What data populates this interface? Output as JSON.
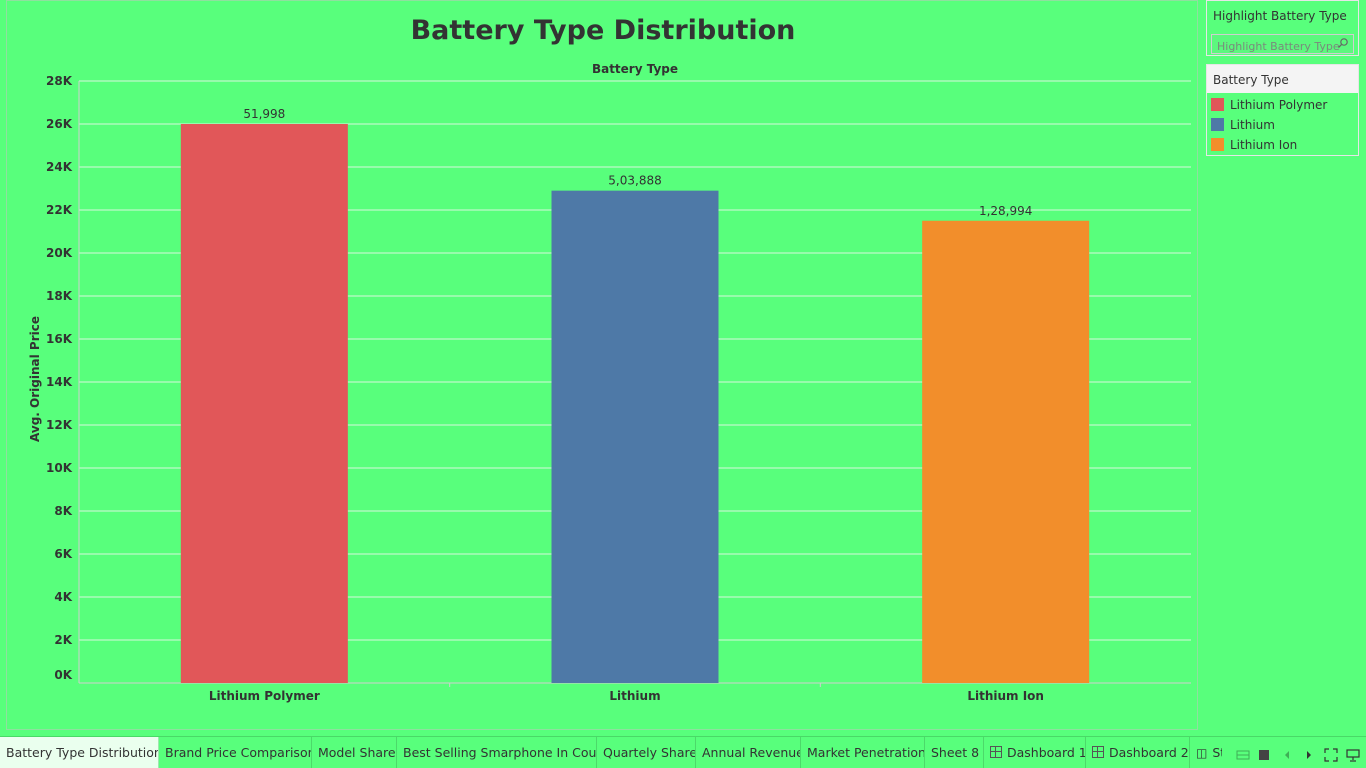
{
  "chart_data": {
    "type": "bar",
    "title": "Battery Type Distribution",
    "column_header": "Battery Type",
    "ylabel": "Avg. Original Price",
    "categories": [
      "Lithium Polymer",
      "Lithium",
      "Lithium Ion"
    ],
    "values": [
      26000,
      22900,
      21500
    ],
    "data_labels": [
      "51,998",
      "5,03,888",
      "1,28,994"
    ],
    "colors": [
      "#e15759",
      "#4e79a7",
      "#f28e2b"
    ],
    "ylim": [
      0,
      28000
    ],
    "yticks": [
      0,
      2000,
      4000,
      6000,
      8000,
      10000,
      12000,
      14000,
      16000,
      18000,
      20000,
      22000,
      24000,
      26000,
      28000
    ],
    "ytick_labels": [
      "0K",
      "2K",
      "4K",
      "6K",
      "8K",
      "10K",
      "12K",
      "14K",
      "16K",
      "18K",
      "20K",
      "22K",
      "24K",
      "26K",
      "28K"
    ],
    "grid": true,
    "legend_position": "right"
  },
  "highlight": {
    "title": "Highlight Battery Type",
    "placeholder": "Highlight Battery Type"
  },
  "legend": {
    "title": "Battery Type",
    "items": [
      {
        "label": "Lithium Polymer",
        "color": "#e15759"
      },
      {
        "label": "Lithium",
        "color": "#4e79a7"
      },
      {
        "label": "Lithium Ion",
        "color": "#f28e2b"
      }
    ]
  },
  "tabs": [
    {
      "label": "Battery Type Distribution",
      "active": true
    },
    {
      "label": "Brand Price Comparison"
    },
    {
      "label": "Model Share"
    },
    {
      "label": "Best Selling Smarphone In Coun..."
    },
    {
      "label": "Quartely Share"
    },
    {
      "label": "Annual Revenue"
    },
    {
      "label": "Market Penetration"
    },
    {
      "label": "Sheet 8"
    },
    {
      "label": "Dashboard 1",
      "icon": "dashboard-icon"
    },
    {
      "label": "Dashboard 2",
      "icon": "dashboard-icon"
    },
    {
      "label": "St",
      "icon": "story-icon"
    }
  ]
}
